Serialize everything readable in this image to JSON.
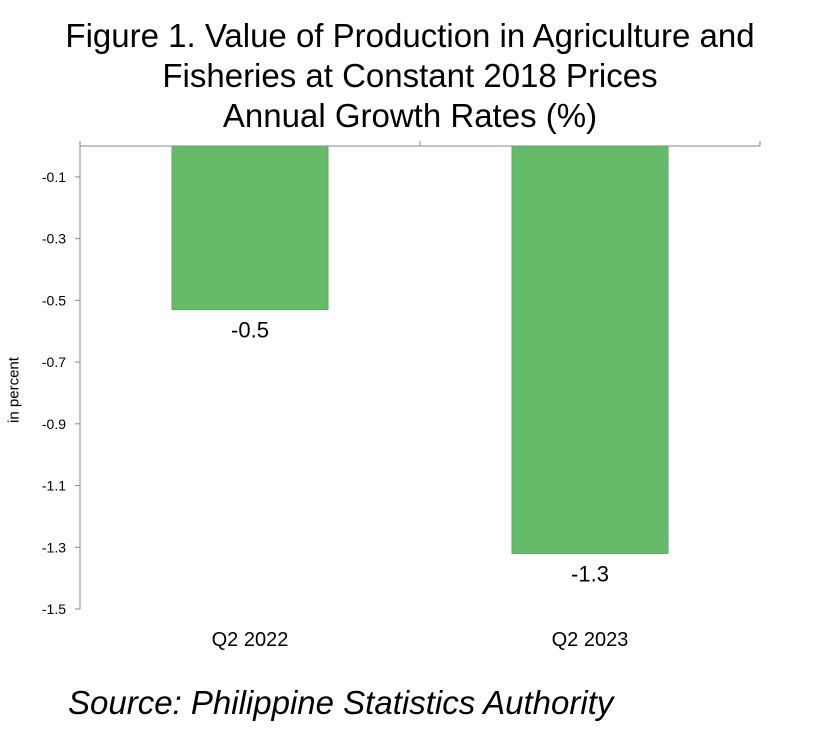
{
  "chart_data": {
    "type": "bar",
    "title_lines": [
      "Figure 1. Value of Production in Agriculture and",
      "Fisheries at Constant 2018 Prices",
      "Annual Growth Rates (%)"
    ],
    "ylabel": "in percent",
    "categories": [
      "Q2 2022",
      "Q2 2023"
    ],
    "values": [
      -0.53,
      -1.32
    ],
    "data_labels": [
      "-0.5",
      "-1.3"
    ],
    "ylim": [
      -1.5,
      0
    ],
    "yticks": [
      -0.1,
      -0.3,
      -0.5,
      -0.7,
      -0.9,
      -1.1,
      -1.3,
      -1.5
    ],
    "ytick_labels": [
      "-0.1",
      "-0.3",
      "-0.5",
      "-0.7",
      "-0.9",
      "-1.1",
      "-1.3",
      "-1.5"
    ],
    "grid": false,
    "legend": "none",
    "bar_color": "#66bb6a"
  },
  "source": "Source: Philippine Statistics Authority"
}
